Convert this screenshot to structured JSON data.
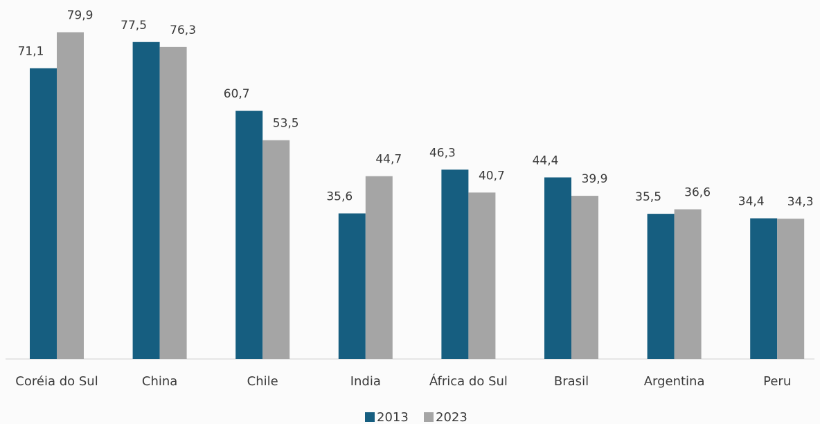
{
  "chart_data": {
    "type": "bar",
    "categories": [
      "Coréia do Sul",
      "China",
      "Chile",
      "India",
      "África do Sul",
      "Brasil",
      "Argentina",
      "Peru"
    ],
    "series": [
      {
        "name": "2013",
        "color": "#165e80",
        "values": [
          71.1,
          77.5,
          60.7,
          35.6,
          46.3,
          44.4,
          35.5,
          34.4
        ],
        "value_labels": [
          "71,1",
          "77,5",
          "60,7",
          "35,6",
          "46,3",
          "44,4",
          "35,5",
          "34,4"
        ]
      },
      {
        "name": "2023",
        "color": "#a5a5a5",
        "values": [
          79.9,
          76.3,
          53.5,
          44.7,
          40.7,
          39.9,
          36.6,
          34.3
        ],
        "value_labels": [
          "79,9",
          "76,3",
          "53,5",
          "44,7",
          "40,7",
          "39,9",
          "36,6",
          "34,3"
        ]
      }
    ],
    "ylim": [
      0,
      80
    ]
  }
}
